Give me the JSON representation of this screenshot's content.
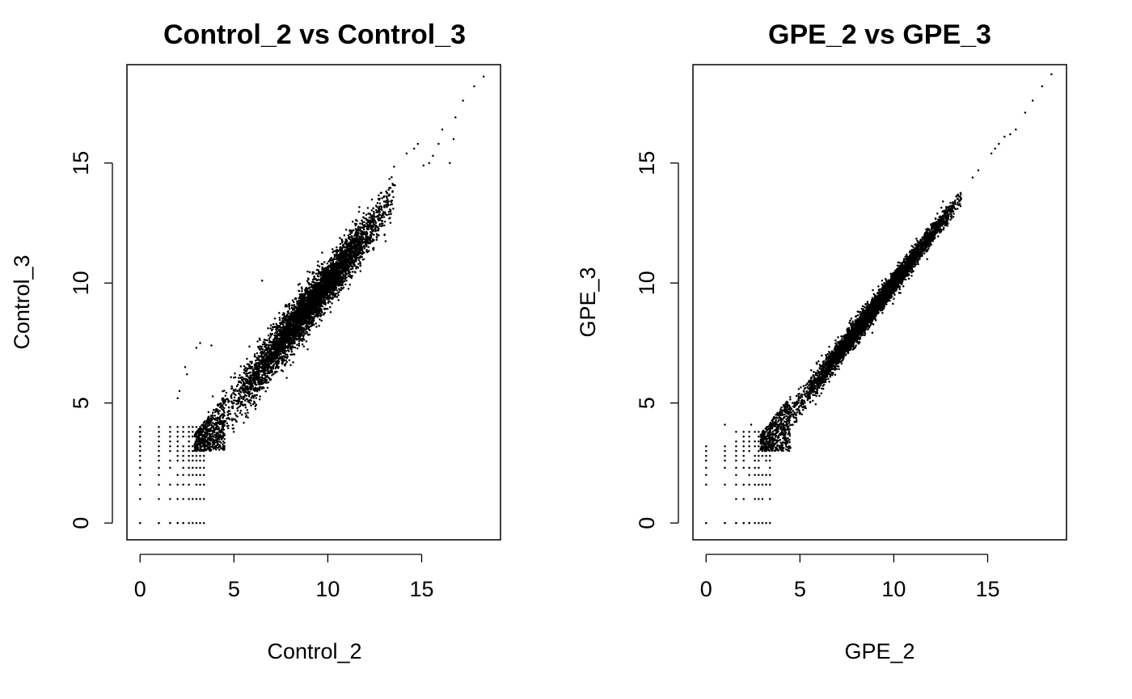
{
  "chart_data": [
    {
      "type": "scatter",
      "title": "Control_2 vs Control_3",
      "xlabel": "Control_2",
      "ylabel": "Control_3",
      "xlim": [
        -0.7,
        19.2
      ],
      "ylim": [
        -0.7,
        19.1
      ],
      "xticks": [
        0,
        5,
        10,
        15
      ],
      "yticks": [
        0,
        5,
        10,
        15
      ],
      "xtick_labels": [
        "0",
        "5",
        "10",
        "15"
      ],
      "ytick_labels": [
        "0",
        "5",
        "10",
        "15"
      ],
      "point_color": "#000000",
      "grid": false,
      "legend": "none",
      "cloud": {
        "relationship": "y ≈ x",
        "spread_sd_at_x3": 0.55,
        "spread_sd_at_x18": 0.35,
        "dense_x_range": [
          3.0,
          13.5
        ],
        "low_end_discrete_x": [
          0,
          1,
          1.6,
          2,
          2.3,
          2.6,
          2.8,
          3.0,
          3.2,
          3.4
        ],
        "low_end_discrete_y": [
          0,
          1,
          1.6,
          2,
          2.3,
          2.6,
          2.8,
          3.0,
          3.2,
          3.4,
          3.6,
          3.8,
          4.0
        ]
      },
      "notable_points": [
        {
          "x": 18.3,
          "y": 18.6
        },
        {
          "x": 17.8,
          "y": 18.2
        },
        {
          "x": 17.2,
          "y": 17.6
        },
        {
          "x": 16.8,
          "y": 16.9
        },
        {
          "x": 16.1,
          "y": 16.4
        },
        {
          "x": 15.9,
          "y": 15.8
        },
        {
          "x": 15.6,
          "y": 15.3
        },
        {
          "x": 15.4,
          "y": 15.0
        },
        {
          "x": 15.1,
          "y": 14.9
        },
        {
          "x": 16.5,
          "y": 15.0
        },
        {
          "x": 16.7,
          "y": 16.0
        },
        {
          "x": 14.6,
          "y": 15.6
        },
        {
          "x": 14.2,
          "y": 15.4
        },
        {
          "x": 14.8,
          "y": 15.8
        },
        {
          "x": 6.5,
          "y": 10.1
        },
        {
          "x": 3.0,
          "y": 7.3
        },
        {
          "x": 3.2,
          "y": 7.5
        },
        {
          "x": 2.4,
          "y": 6.5
        },
        {
          "x": 2.5,
          "y": 6.2
        },
        {
          "x": 3.8,
          "y": 7.4
        },
        {
          "x": 2.1,
          "y": 5.5
        },
        {
          "x": 2.0,
          "y": 5.2
        }
      ]
    },
    {
      "type": "scatter",
      "title": "GPE_2 vs GPE_3",
      "xlabel": "GPE_2",
      "ylabel": "GPE_3",
      "xlim": [
        -0.7,
        19.2
      ],
      "ylim": [
        -0.7,
        19.1
      ],
      "xticks": [
        0,
        5,
        10,
        15
      ],
      "yticks": [
        0,
        5,
        10,
        15
      ],
      "xtick_labels": [
        "0",
        "5",
        "10",
        "15"
      ],
      "ytick_labels": [
        "0",
        "5",
        "10",
        "15"
      ],
      "point_color": "#000000",
      "grid": false,
      "legend": "none",
      "cloud": {
        "relationship": "y ≈ x",
        "spread_sd_at_x3": 0.3,
        "spread_sd_at_x18": 0.12,
        "dense_x_range": [
          3.0,
          13.5
        ],
        "low_end_discrete_x": [
          0,
          1,
          1.6,
          2,
          2.3,
          2.6,
          2.8,
          3.0,
          3.2,
          3.4
        ],
        "low_end_discrete_y": [
          0,
          1,
          1.6,
          2,
          2.3,
          2.6,
          2.8,
          3.0,
          3.2,
          3.4,
          3.6,
          3.8
        ]
      },
      "notable_points": [
        {
          "x": 18.4,
          "y": 18.7
        },
        {
          "x": 17.9,
          "y": 18.2
        },
        {
          "x": 17.4,
          "y": 17.6
        },
        {
          "x": 17.0,
          "y": 17.1
        },
        {
          "x": 16.5,
          "y": 16.4
        },
        {
          "x": 16.2,
          "y": 16.2
        },
        {
          "x": 15.9,
          "y": 16.1
        },
        {
          "x": 15.6,
          "y": 15.8
        },
        {
          "x": 15.4,
          "y": 15.6
        },
        {
          "x": 15.2,
          "y": 15.4
        },
        {
          "x": 14.5,
          "y": 14.7
        },
        {
          "x": 14.2,
          "y": 14.4
        },
        {
          "x": 1.0,
          "y": 4.1
        },
        {
          "x": 2.4,
          "y": 4.1
        }
      ]
    }
  ]
}
